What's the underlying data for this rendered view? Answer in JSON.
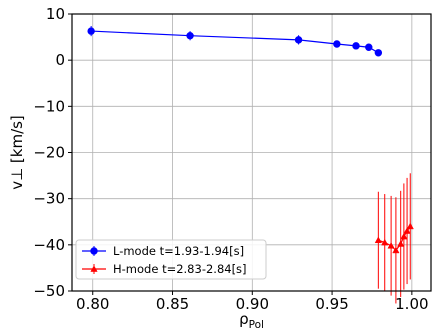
{
  "chart_data": {
    "type": "line",
    "title": "",
    "xlabel": "ρ",
    "xlabel_sub": "Pol",
    "ylabel": "v⊥ [km/s]",
    "xlim": [
      0.787,
      1.012
    ],
    "ylim": [
      -50,
      10
    ],
    "xticks": [
      0.8,
      0.85,
      0.9,
      0.95,
      1.0
    ],
    "xtick_labels": [
      "0.80",
      "0.85",
      "0.90",
      "0.95",
      "1.00"
    ],
    "yticks": [
      -50,
      -40,
      -30,
      -20,
      -10,
      0,
      10
    ],
    "ytick_labels": [
      "−50",
      "−40",
      "−30",
      "−20",
      "−10",
      "0",
      "10"
    ],
    "grid": true,
    "legend_position": "lower-left",
    "series": [
      {
        "name": "L-mode t=1.93-1.94[s]",
        "color": "#0000ff",
        "marker": "circle",
        "x": [
          0.799,
          0.861,
          0.929,
          0.953,
          0.965,
          0.973,
          0.979
        ],
        "y": [
          6.3,
          5.3,
          4.4,
          3.5,
          3.1,
          2.8,
          1.6
        ],
        "yerr": [
          1.1,
          1.0,
          1.0,
          0.7,
          0.5,
          0.5,
          0.4
        ]
      },
      {
        "name": "H-mode t=2.83-2.84[s]",
        "color": "#ff0000",
        "marker": "tri",
        "x": [
          0.979,
          0.983,
          0.987,
          0.99,
          0.993,
          0.995,
          0.997,
          0.999
        ],
        "y": [
          -39.0,
          -39.5,
          -40.2,
          -41.2,
          -39.8,
          -38.2,
          -37.0,
          -36.0
        ],
        "yerr": [
          10.5,
          10.5,
          10.8,
          11.5,
          11.5,
          11.5,
          11.5,
          11.5
        ]
      }
    ]
  }
}
